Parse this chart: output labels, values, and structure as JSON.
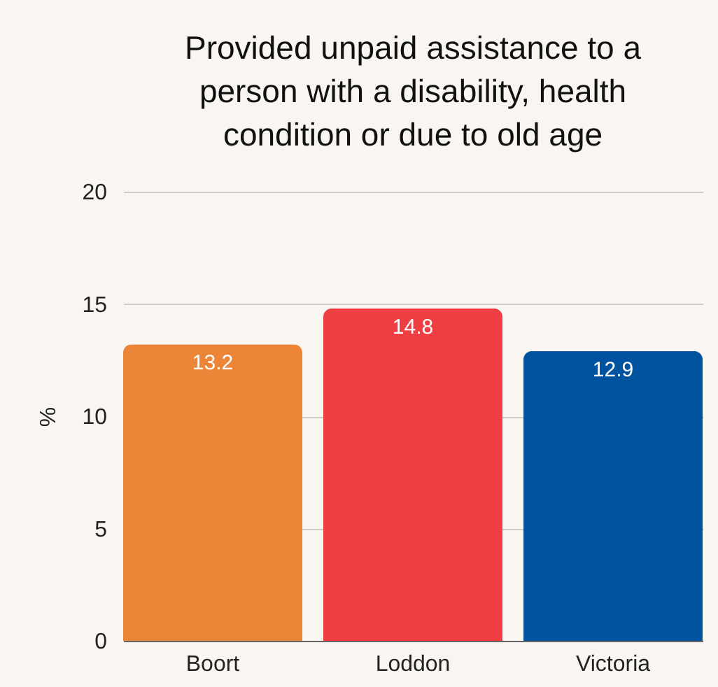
{
  "chart_data": {
    "type": "bar",
    "title": "Provided unpaid assistance to a person with a disability, health condition or due to old age",
    "ylabel": "%",
    "categories": [
      "Boort",
      "Loddon",
      "Victoria"
    ],
    "values": [
      13.2,
      14.8,
      12.9
    ],
    "colors": [
      "#ed8539",
      "#ef3e42",
      "#00539f"
    ],
    "ylim": [
      0,
      20
    ],
    "yticks": [
      0,
      5,
      10,
      15,
      20
    ],
    "grid": "y",
    "data_labels": true
  }
}
